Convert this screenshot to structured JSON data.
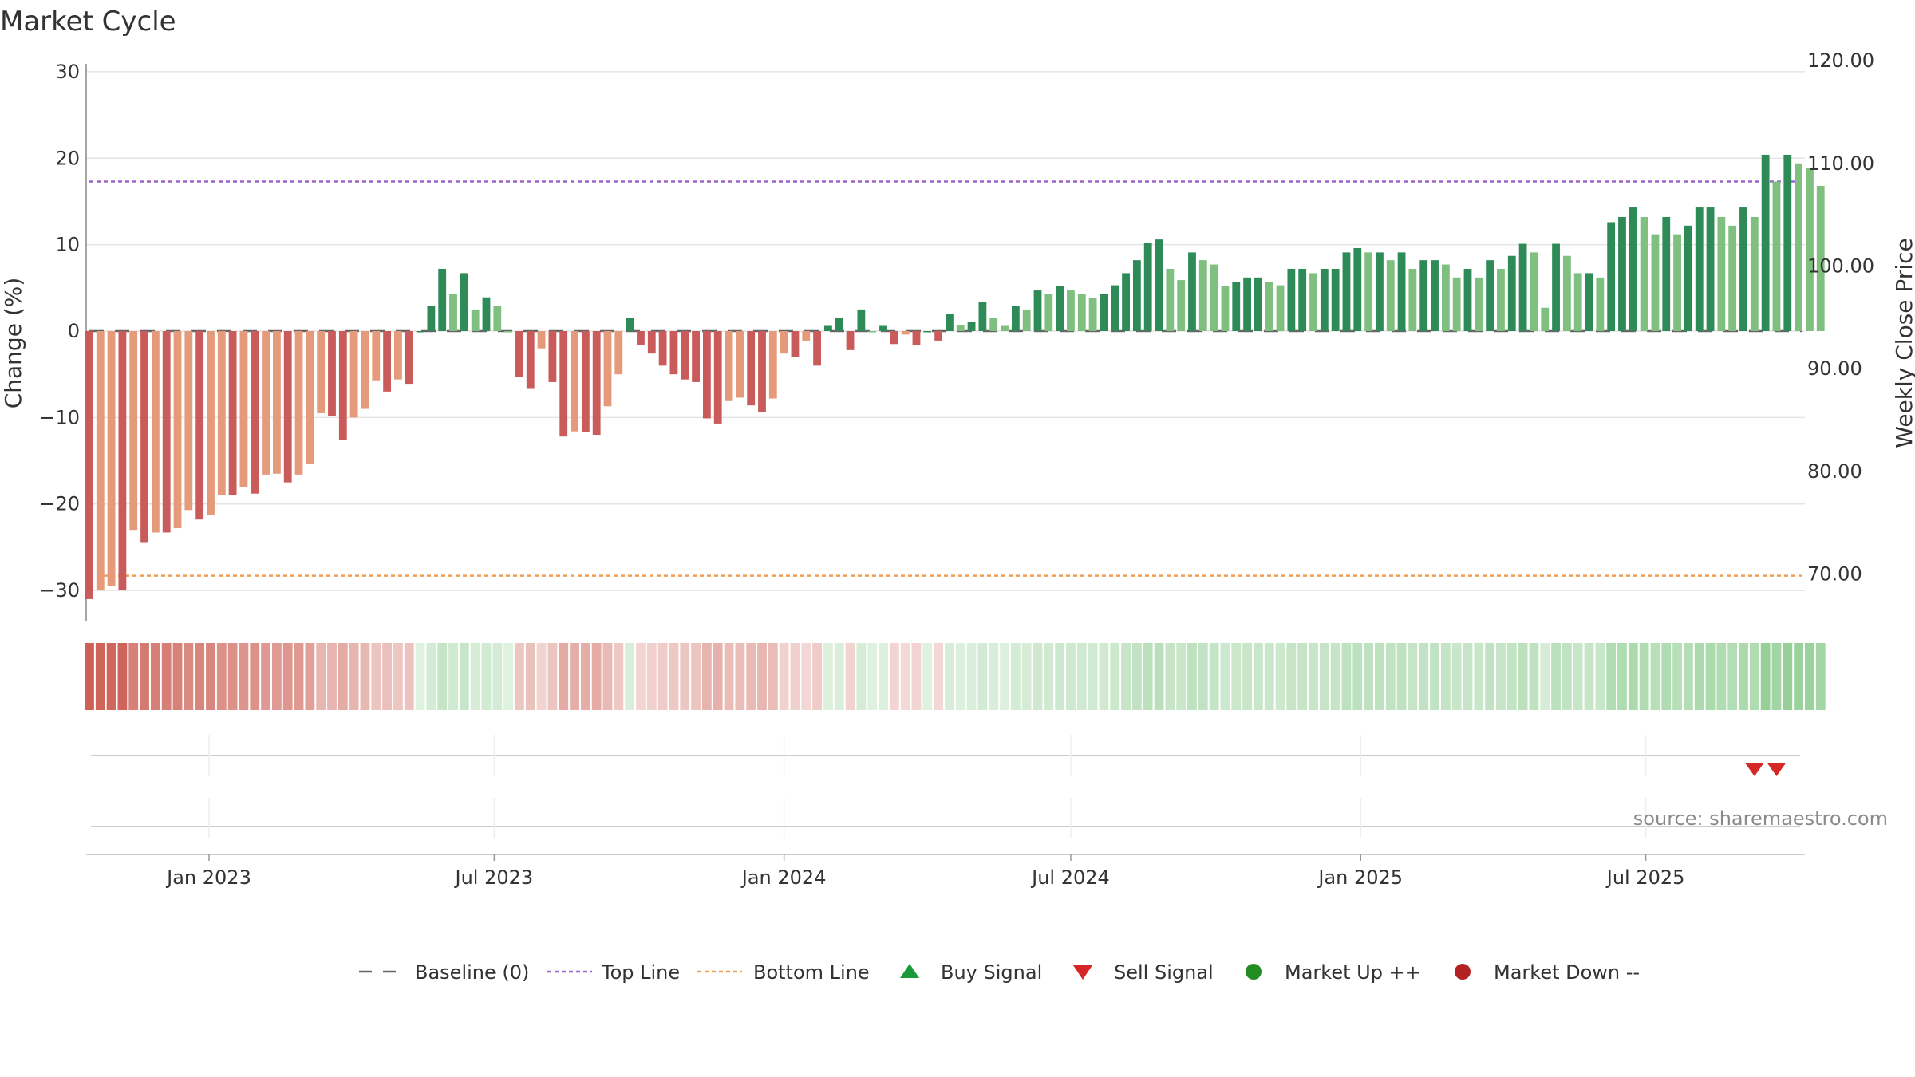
{
  "title": "Market Cycle",
  "source": "source: sharemaestro.com",
  "colors": {
    "up_dark": "#2e8b57",
    "up_light": "#7fbf7f",
    "down_dark": "#c95b5b",
    "down_light": "#e59a7a",
    "top_line": "#9966cc",
    "bottom_line": "#f0a050",
    "baseline": "#666666",
    "grid": "#e5e5e5",
    "buy": "#1a9a3a",
    "sell": "#d62728",
    "market_up": "#228b22",
    "market_down": "#b22222",
    "strip_pos": "#4caf50",
    "strip_neg": "#c0392b"
  },
  "legend": [
    {
      "label": "Baseline (0)",
      "icon": "dash-line"
    },
    {
      "label": "Top Line",
      "icon": "dotted-purple-line"
    },
    {
      "label": "Bottom Line",
      "icon": "dotted-orange-line"
    },
    {
      "label": "Buy Signal",
      "icon": "triangle-up"
    },
    {
      "label": "Sell Signal",
      "icon": "triangle-down"
    },
    {
      "label": "Market Up ++",
      "icon": "green-circle"
    },
    {
      "label": "Market Down --",
      "icon": "red-circle"
    }
  ],
  "chart_data": {
    "type": "bar",
    "x_start": "2022-10-17",
    "x_step_days": 7,
    "xticks": [
      "Jan 2023",
      "Jul 2023",
      "Jan 2024",
      "Jul 2024",
      "Jan 2025",
      "Jul 2025"
    ],
    "xtick_dates": [
      "2023-01-01",
      "2023-07-01",
      "2024-01-01",
      "2024-07-01",
      "2025-01-01",
      "2025-07-01"
    ],
    "x_range": [
      "2022-10-15",
      "2025-10-10"
    ],
    "y_left": {
      "label": "Change (%)",
      "range": [
        -33.5,
        33.5
      ],
      "ticks": [
        -30,
        -20,
        -10,
        0,
        10,
        20,
        30
      ],
      "tick_labels": [
        "−30",
        "−20",
        "−10",
        "0",
        "10",
        "20",
        "30"
      ]
    },
    "y_right": {
      "label": "Weekly Close Price",
      "range": [
        66.4,
        122.8
      ],
      "ticks": [
        70,
        80,
        90,
        100,
        110,
        120
      ],
      "tick_labels": [
        "70.00",
        "80.00",
        "90.00",
        "100.00",
        "110.00",
        "120.00"
      ]
    },
    "top_line": 17.3,
    "bottom_line": -28.3,
    "baseline": 0,
    "grid": true,
    "legend_position": "bottom",
    "sell_signals": [
      "2025-09-08",
      "2025-09-22"
    ],
    "buy_signals": [],
    "values": [
      -31,
      -30,
      -29.5,
      -30,
      -23,
      -24.5,
      -23.3,
      -23.3,
      -22.8,
      -20.7,
      -21.8,
      -21.3,
      -19,
      -19,
      -18,
      -18.8,
      -16.6,
      -16.5,
      -17.5,
      -16.6,
      -15.4,
      -9.5,
      -9.8,
      -12.6,
      -10,
      -9,
      -5.7,
      -7,
      -5.6,
      -6.1,
      0,
      2.9,
      7.2,
      4.3,
      6.7,
      2.5,
      3.9,
      2.9,
      0,
      -5.3,
      -6.6,
      -2,
      -5.9,
      -12.2,
      -11.6,
      -11.7,
      -12,
      -8.7,
      -5,
      1.5,
      -1.6,
      -2.6,
      -4,
      -5,
      -5.6,
      -5.9,
      -10.1,
      -10.7,
      -8.1,
      -7.7,
      -8.6,
      -9.4,
      -7.8,
      -2.6,
      -3,
      -1.1,
      -4,
      0.6,
      1.5,
      -2.2,
      2.5,
      0,
      0.6,
      -1.5,
      -0.4,
      -1.6,
      0,
      -1.1,
      2,
      0.7,
      1.1,
      3.4,
      1.5,
      0.6,
      2.9,
      2.5,
      4.7,
      4.3,
      5.2,
      4.7,
      4.3,
      3.8,
      4.3,
      5.3,
      6.7,
      8.2,
      10.2,
      10.6,
      7.2,
      5.9,
      9.1,
      8.2,
      7.7,
      5.2,
      5.7,
      6.2,
      6.2,
      5.7,
      5.3,
      7.2,
      7.2,
      6.7,
      7.2,
      7.2,
      9.1,
      9.6,
      9.1,
      9.1,
      8.2,
      9.1,
      7.2,
      8.2,
      8.2,
      7.7,
      6.2,
      7.2,
      6.2,
      8.2,
      7.2,
      8.7,
      10.1,
      9.1,
      2.7,
      10.1,
      8.7,
      6.7,
      6.7,
      6.2,
      12.6,
      13.2,
      14.3,
      13.2,
      11.2,
      13.2,
      11.2,
      12.2,
      14.3,
      14.3,
      13.2,
      12.2,
      14.3,
      13.2,
      20.4,
      17.3,
      20.4,
      19.4,
      18.9,
      16.8
    ]
  }
}
